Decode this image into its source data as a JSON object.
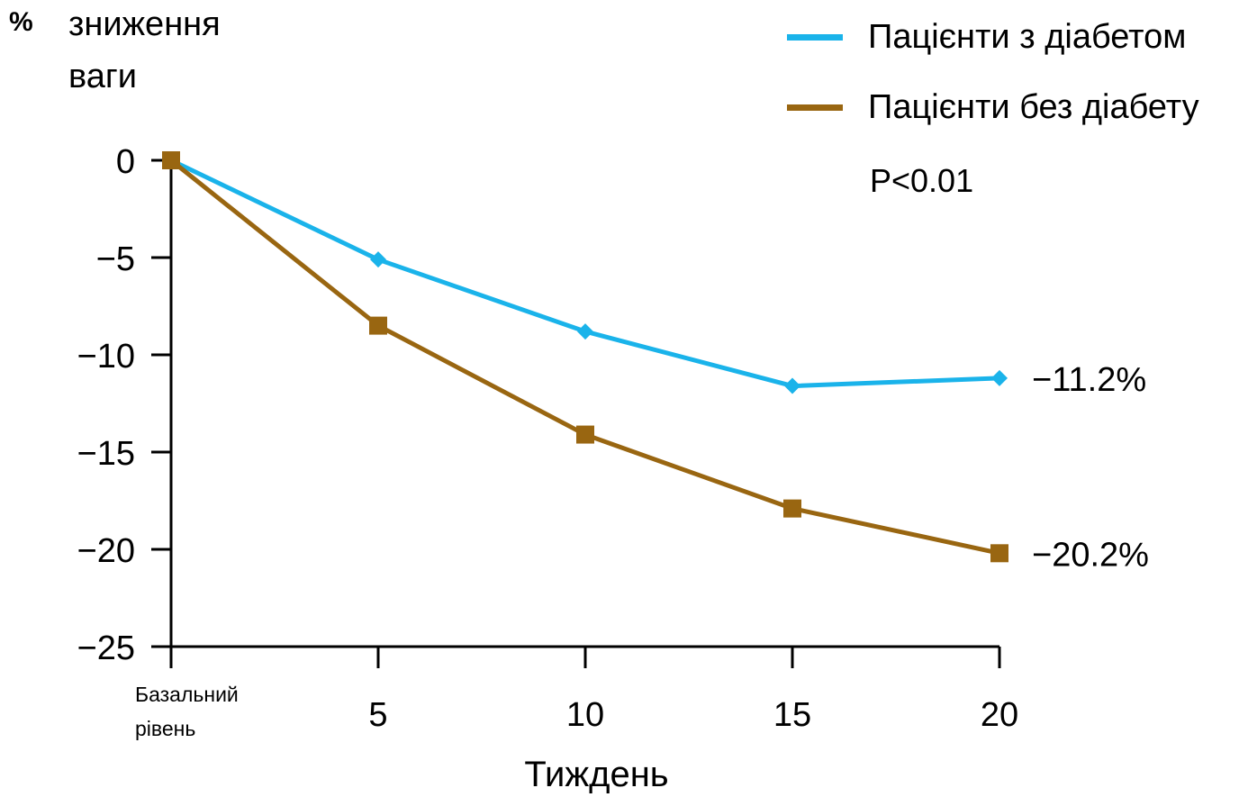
{
  "chart_data": {
    "type": "line",
    "ylabel": {
      "symbol": "%",
      "line1": "зниження",
      "line2": "ваги"
    },
    "xlabel": "Тиждень",
    "baseline_label": [
      "Базальний",
      "рівень"
    ],
    "x": [
      0,
      5,
      10,
      15,
      20
    ],
    "x_tick_labels": [
      "5",
      "10",
      "15",
      "20"
    ],
    "y_ticks": [
      "0",
      "−5",
      "−10",
      "−15",
      "−20",
      "−25"
    ],
    "y_tick_values": [
      0,
      -5,
      -10,
      -15,
      -20,
      -25
    ],
    "ylim": [
      -25,
      0
    ],
    "xlim": [
      0,
      20
    ],
    "series": [
      {
        "name": "Пацієнти з діабетом",
        "color": "#1ab3ea",
        "marker": "diamond",
        "values": [
          0,
          -5.1,
          -8.8,
          -11.6,
          -11.2
        ],
        "end_label": "−11.2%"
      },
      {
        "name": "Пацієнти без діабету",
        "color": "#996611",
        "marker": "square",
        "values": [
          0,
          -8.5,
          -14.1,
          -17.9,
          -20.2
        ],
        "end_label": "−20.2%"
      }
    ],
    "annotation": "P<0.01",
    "legend_position": "top-right",
    "grid": false
  }
}
